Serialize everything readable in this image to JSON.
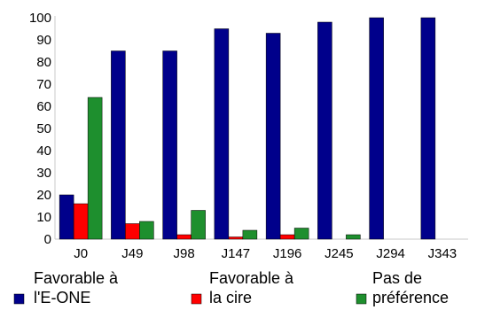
{
  "chart_data": {
    "type": "bar",
    "title": "",
    "xlabel": "",
    "ylabel": "",
    "ylim": [
      0,
      100
    ],
    "yticks": [
      0,
      10,
      20,
      30,
      40,
      50,
      60,
      70,
      80,
      90,
      100
    ],
    "categories": [
      "J0",
      "J49",
      "J98",
      "J147",
      "J196",
      "J245",
      "J294",
      "J343"
    ],
    "grid": false,
    "legend_position": "bottom",
    "series": [
      {
        "name": "Favorable à l'E-ONE",
        "legend_lines": [
          "Favorable à",
          "l'E-ONE"
        ],
        "color": "#00008b",
        "values": [
          20,
          85,
          85,
          95,
          93,
          98,
          100,
          100
        ]
      },
      {
        "name": "Favorable à la cire",
        "legend_lines": [
          "Favorable à",
          "la cire"
        ],
        "color": "#ff0000",
        "values": [
          16,
          7,
          2,
          1,
          2,
          0,
          0,
          0
        ]
      },
      {
        "name": "Pas de préférence",
        "legend_lines": [
          "Pas de",
          "préférence"
        ],
        "color": "#1e8f2e",
        "values": [
          64,
          8,
          13,
          4,
          5,
          2,
          0,
          0
        ]
      }
    ]
  }
}
